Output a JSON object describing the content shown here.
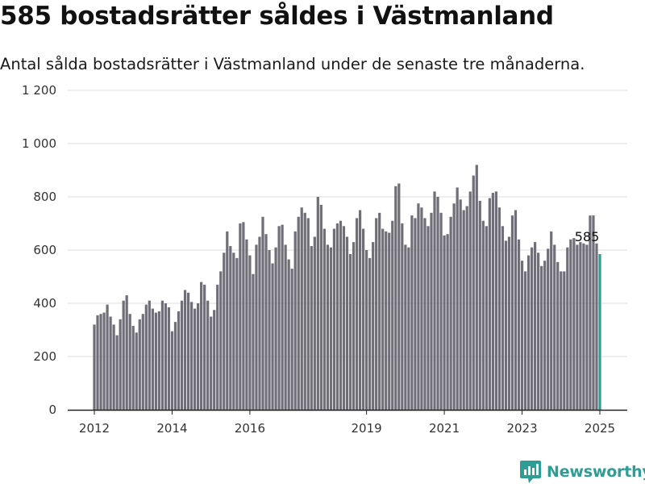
{
  "title": "585 bostadsrätter såldes i Västmanland",
  "subtitle": "Antal sålda bostadsrätter i Västmanland under de senaste tre månaderna.",
  "brand": {
    "name": "Newsworthy",
    "logo_icon": "bar-chart-speech-icon"
  },
  "colors": {
    "bar": "#706e77",
    "highlight": "#2e9e94",
    "grid": "#dddddd",
    "axis": "#222222"
  },
  "chart_data": {
    "type": "bar",
    "title": "585 bostadsrätter såldes i Västmanland",
    "subtitle": "Antal sålda bostadsrätter i Västmanland under de senaste tre månaderna.",
    "xlabel": "",
    "ylabel": "",
    "ylim": [
      0,
      1200
    ],
    "yticks": [
      {
        "value": 0,
        "label": "0"
      },
      {
        "value": 200,
        "label": "200"
      },
      {
        "value": 400,
        "label": "400"
      },
      {
        "value": 600,
        "label": "600"
      },
      {
        "value": 800,
        "label": "800"
      },
      {
        "value": 1000,
        "label": "1 000"
      },
      {
        "value": 1200,
        "label": "1 200"
      }
    ],
    "xticks": [
      "2012",
      "2014",
      "2016",
      "2019",
      "2021",
      "2023",
      "2025"
    ],
    "grid": true,
    "legend": "none",
    "start_month": "2012-01",
    "end_month": "2025-01",
    "highlight_label": "585",
    "values": [
      320,
      355,
      360,
      365,
      395,
      350,
      320,
      280,
      340,
      410,
      430,
      360,
      315,
      290,
      340,
      360,
      395,
      410,
      380,
      365,
      370,
      410,
      400,
      385,
      295,
      330,
      370,
      410,
      450,
      440,
      405,
      380,
      400,
      480,
      470,
      410,
      350,
      375,
      470,
      520,
      590,
      670,
      615,
      590,
      570,
      700,
      705,
      640,
      580,
      510,
      620,
      650,
      725,
      660,
      600,
      550,
      610,
      690,
      695,
      620,
      565,
      530,
      670,
      725,
      760,
      740,
      720,
      615,
      650,
      800,
      770,
      680,
      620,
      610,
      680,
      700,
      710,
      690,
      650,
      585,
      630,
      720,
      750,
      680,
      600,
      570,
      630,
      720,
      740,
      680,
      670,
      665,
      710,
      840,
      850,
      700,
      620,
      610,
      730,
      720,
      775,
      760,
      720,
      690,
      740,
      820,
      800,
      740,
      655,
      660,
      725,
      775,
      835,
      790,
      750,
      765,
      820,
      880,
      920,
      785,
      710,
      690,
      795,
      815,
      820,
      760,
      690,
      635,
      650,
      730,
      750,
      640,
      560,
      520,
      580,
      610,
      630,
      590,
      540,
      560,
      605,
      670,
      620,
      555,
      520,
      520,
      610,
      640,
      645,
      620,
      630,
      625,
      620,
      730,
      730,
      625,
      585
    ]
  }
}
